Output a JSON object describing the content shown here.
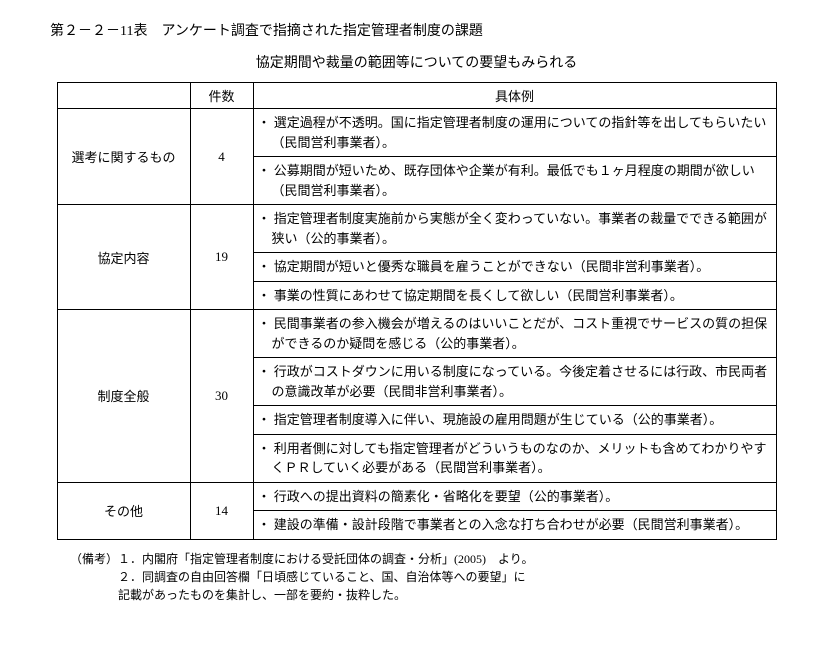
{
  "title": "第２－２－11表　アンケート調査で指摘された指定管理者制度の課題",
  "subtitle": "協定期間や裁量の範囲等についての要望もみられる",
  "headers": {
    "category": "",
    "count": "件数",
    "examples": "具体例"
  },
  "rows": [
    {
      "category": "選考に関するもの",
      "count": "4",
      "examples": [
        "選定過程が不透明。国に指定管理者制度の運用についての指針等を出してもらいたい（民間営利事業者）。",
        "公募期間が短いため、既存団体や企業が有利。最低でも１ヶ月程度の期間が欲しい（民間営利事業者）。"
      ]
    },
    {
      "category": "協定内容",
      "count": "19",
      "examples": [
        "指定管理者制度実施前から実態が全く変わっていない。事業者の裁量でできる範囲が狭い（公的事業者）。",
        "協定期間が短いと優秀な職員を雇うことができない（民間非営利事業者）。",
        "事業の性質にあわせて協定期間を長くして欲しい（民間営利事業者）。"
      ]
    },
    {
      "category": "制度全般",
      "count": "30",
      "examples": [
        "民間事業者の参入機会が増えるのはいいことだが、コスト重視でサービスの質の担保ができるのか疑問を感じる（公的事業者）。",
        "行政がコストダウンに用いる制度になっている。今後定着させるには行政、市民両者の意識改革が必要（民間非営利事業者）。",
        "指定管理者制度導入に伴い、現施設の雇用問題が生じている（公的事業者）。",
        "利用者側に対しても指定管理者がどういうものなのか、メリットも含めてわかりやすくＰＲしていく必要がある（民間営利事業者）。"
      ]
    },
    {
      "category": "その他",
      "count": "14",
      "examples": [
        "行政への提出資料の簡素化・省略化を要望（公的事業者）。",
        "建設の準備・設計段階で事業者との入念な打ち合わせが必要（民間営利事業者）。"
      ]
    }
  ],
  "notes_label": "（備考）",
  "notes": [
    "１．内閣府「指定管理者制度における受託団体の調査・分析」(2005)　より。",
    "２．同調査の自由回答欄「日頃感じていること、国、自治体等への要望」に",
    "記載があったものを集計し、一部を要約・抜粋した。"
  ]
}
